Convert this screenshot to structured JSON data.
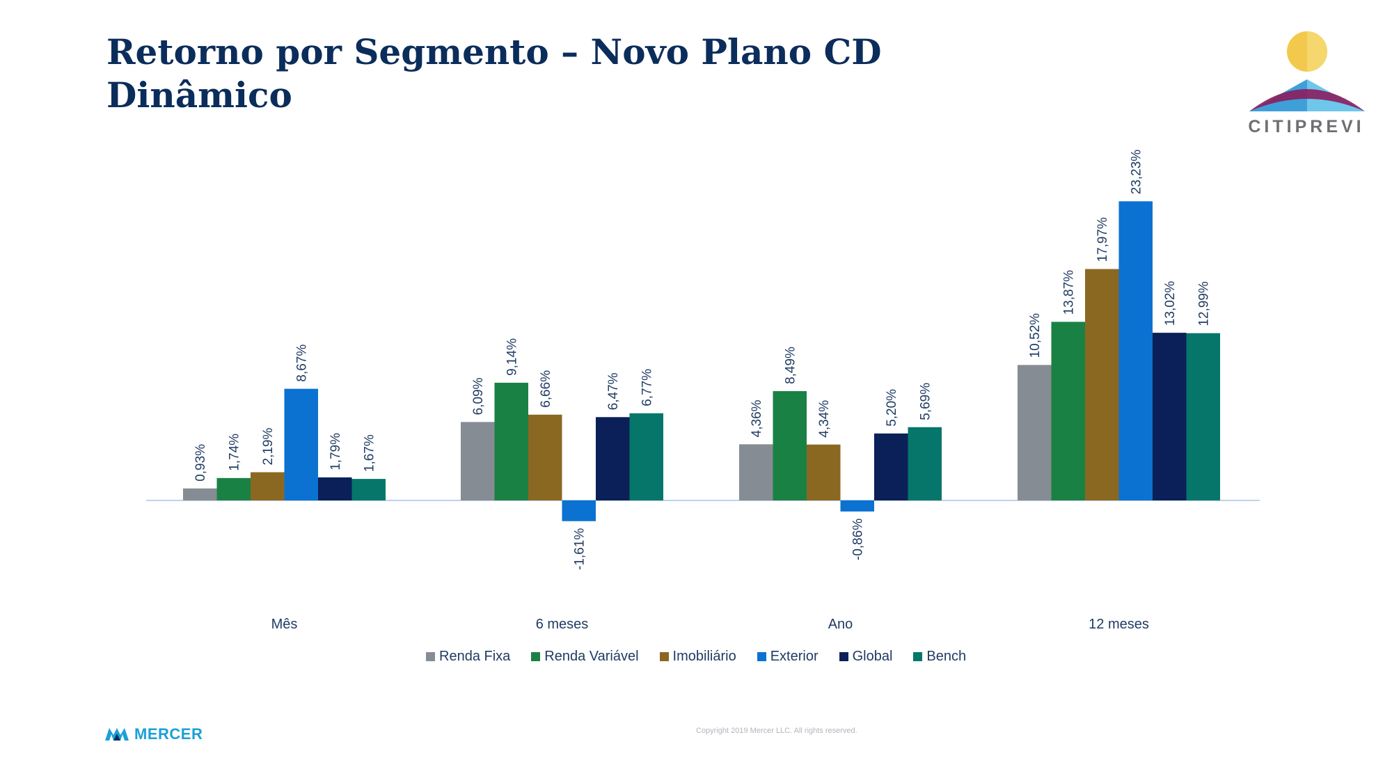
{
  "title_line1": "Retorno por Segmento – Novo Plano CD",
  "title_line2": "Dinâmico",
  "logo_text": "CITIPREVI",
  "footer": {
    "brand": "MERCER",
    "copyright": "Copyright 2019 Mercer LLC. All rights reserved."
  },
  "colors": {
    "title": "#0b2d5b",
    "axis": "#bfd3ea",
    "label": "#1f3b63"
  },
  "chart_data": {
    "type": "bar",
    "categories": [
      "Mês",
      "6 meses",
      "Ano",
      "12 meses"
    ],
    "series": [
      {
        "name": "Renda Fixa",
        "color": "#868c93",
        "values": [
          0.93,
          6.09,
          4.36,
          10.52
        ],
        "labels": [
          "0,93%",
          "6,09%",
          "4,36%",
          "10,52%"
        ]
      },
      {
        "name": "Renda Variável",
        "color": "#1a8144",
        "values": [
          1.74,
          9.14,
          8.49,
          13.87
        ],
        "labels": [
          "1,74%",
          "9,14%",
          "8,49%",
          "13,87%"
        ]
      },
      {
        "name": "Imobiliário",
        "color": "#8b6822",
        "values": [
          2.19,
          6.66,
          4.34,
          17.97
        ],
        "labels": [
          "2,19%",
          "6,66%",
          "4,34%",
          "17,97%"
        ]
      },
      {
        "name": "Exterior",
        "color": "#0b72d1",
        "values": [
          8.67,
          -1.61,
          -0.86,
          23.23
        ],
        "labels": [
          "8,67%",
          "-1,61%",
          "-0,86%",
          "23,23%"
        ]
      },
      {
        "name": "Global",
        "color": "#0b2058",
        "values": [
          1.79,
          6.47,
          5.2,
          13.02
        ],
        "labels": [
          "1,79%",
          "6,47%",
          "5,20%",
          "13,02%"
        ]
      },
      {
        "name": "Bench",
        "color": "#06766a",
        "values": [
          1.67,
          6.77,
          5.69,
          12.99
        ],
        "labels": [
          "1,67%",
          "6,77%",
          "5,69%",
          "12,99%"
        ]
      }
    ],
    "legend_position": "bottom",
    "grid": false
  }
}
